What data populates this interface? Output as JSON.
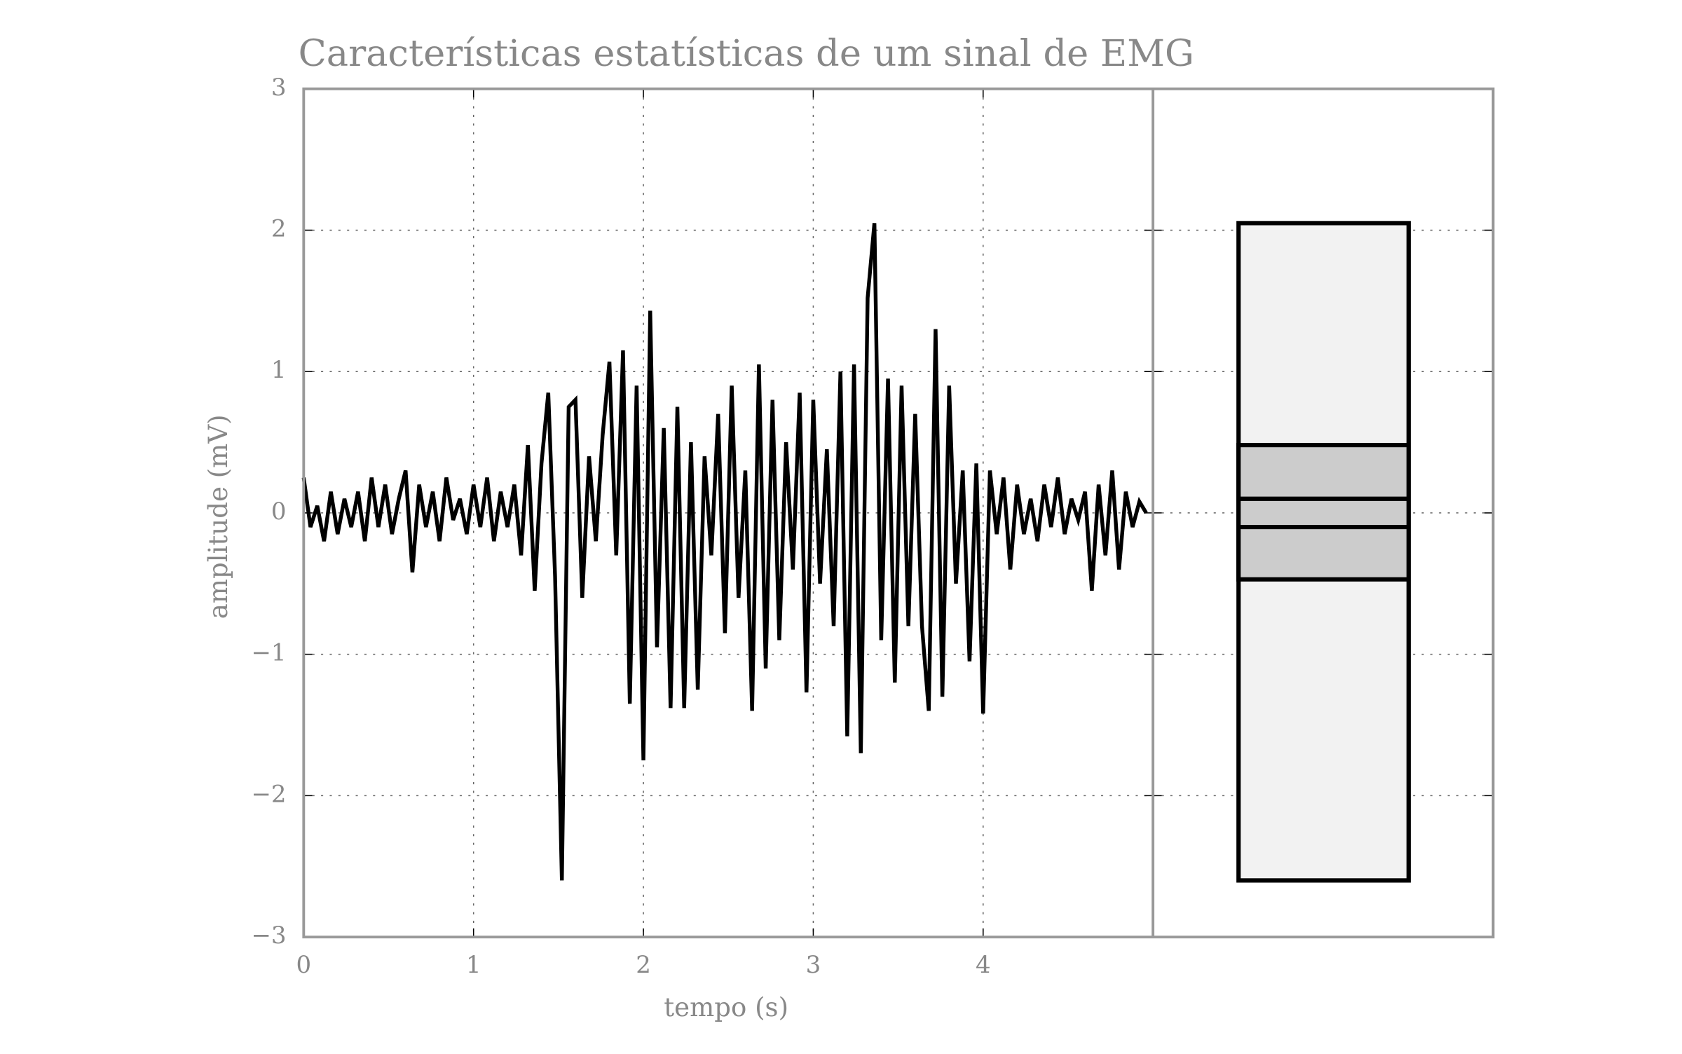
{
  "chart_data": {
    "type": "line",
    "title": "Características estatísticas de um sinal de EMG",
    "xlabel": "tempo (s)",
    "ylabel": "amplitude (mV)",
    "xlim": [
      0,
      5
    ],
    "ylim": [
      -3,
      3
    ],
    "xticks": [
      0,
      1,
      2,
      3,
      4
    ],
    "yticks": [
      {
        "value": -3,
        "label": "−3"
      },
      {
        "value": -2,
        "label": "−2"
      },
      {
        "value": -1,
        "label": "−1"
      },
      0,
      1,
      2,
      3
    ],
    "grid": true,
    "series": [
      {
        "color": "#000000",
        "x": [
          0,
          0.04,
          0.08,
          0.12,
          0.16,
          0.2,
          0.24,
          0.28,
          0.32,
          0.36,
          0.4,
          0.44,
          0.48,
          0.52,
          0.56,
          0.6,
          0.64,
          0.68,
          0.72,
          0.76,
          0.8,
          0.84,
          0.88,
          0.92,
          0.96,
          1.0,
          1.04,
          1.08,
          1.12,
          1.16,
          1.2,
          1.24,
          1.28,
          1.32,
          1.36,
          1.4,
          1.44,
          1.48,
          1.52,
          1.56,
          1.6,
          1.64,
          1.68,
          1.72,
          1.76,
          1.8,
          1.84,
          1.88,
          1.92,
          1.96,
          2.0,
          2.04,
          2.08,
          2.12,
          2.16,
          2.2,
          2.24,
          2.28,
          2.32,
          2.36,
          2.4,
          2.44,
          2.48,
          2.52,
          2.56,
          2.6,
          2.64,
          2.68,
          2.72,
          2.76,
          2.8,
          2.84,
          2.88,
          2.92,
          2.96,
          3.0,
          3.04,
          3.08,
          3.12,
          3.16,
          3.2,
          3.24,
          3.28,
          3.32,
          3.36,
          3.4,
          3.44,
          3.48,
          3.52,
          3.56,
          3.6,
          3.64,
          3.68,
          3.72,
          3.76,
          3.8,
          3.84,
          3.88,
          3.92,
          3.96,
          4.0,
          4.04,
          4.08,
          4.12,
          4.16,
          4.2,
          4.24,
          4.28,
          4.32,
          4.36,
          4.4,
          4.44,
          4.48,
          4.52,
          4.56,
          4.6,
          4.64,
          4.68,
          4.72,
          4.76,
          4.8,
          4.84,
          4.88,
          4.92,
          4.96
        ],
        "values": [
          0.25,
          -0.1,
          0.05,
          -0.2,
          0.15,
          -0.15,
          0.1,
          -0.1,
          0.15,
          -0.2,
          0.25,
          -0.1,
          0.2,
          -0.15,
          0.1,
          0.3,
          -0.42,
          0.2,
          -0.1,
          0.15,
          -0.2,
          0.25,
          -0.05,
          0.1,
          -0.15,
          0.2,
          -0.1,
          0.25,
          -0.2,
          0.15,
          -0.1,
          0.2,
          -0.3,
          0.48,
          -0.55,
          0.35,
          0.85,
          -0.45,
          -2.6,
          0.75,
          0.8,
          -0.6,
          0.4,
          -0.2,
          0.55,
          1.07,
          -0.3,
          1.15,
          -1.35,
          0.9,
          -1.75,
          1.43,
          -0.95,
          0.6,
          -1.38,
          0.75,
          -1.38,
          0.5,
          -1.25,
          0.4,
          -0.3,
          0.7,
          -0.85,
          0.9,
          -0.6,
          0.3,
          -1.4,
          1.05,
          -1.1,
          0.8,
          -0.9,
          0.5,
          -0.4,
          0.85,
          -1.27,
          0.8,
          -0.5,
          0.45,
          -0.8,
          1.0,
          -1.58,
          1.05,
          -1.7,
          1.52,
          2.05,
          -0.9,
          0.95,
          -1.2,
          0.9,
          -0.8,
          0.7,
          -0.8,
          -1.4,
          1.3,
          -1.3,
          0.9,
          -0.5,
          0.3,
          -1.05,
          0.35,
          -1.42,
          0.3,
          -0.15,
          0.25,
          -0.4,
          0.2,
          -0.15,
          0.1,
          -0.2,
          0.2,
          -0.1,
          0.25,
          -0.15,
          0.1,
          -0.05,
          0.15,
          -0.55,
          0.2,
          -0.3,
          0.3,
          -0.4,
          0.15,
          -0.1,
          0.08,
          0.0
        ]
      }
    ],
    "stats": {
      "max": 2.05,
      "upper_outer": 0.48,
      "upper_inner": 0.1,
      "lower_inner": -0.1,
      "lower_outer": -0.47,
      "min": -2.6,
      "outer_color": "#f2f2f2",
      "inner_color": "#cccccc"
    }
  }
}
